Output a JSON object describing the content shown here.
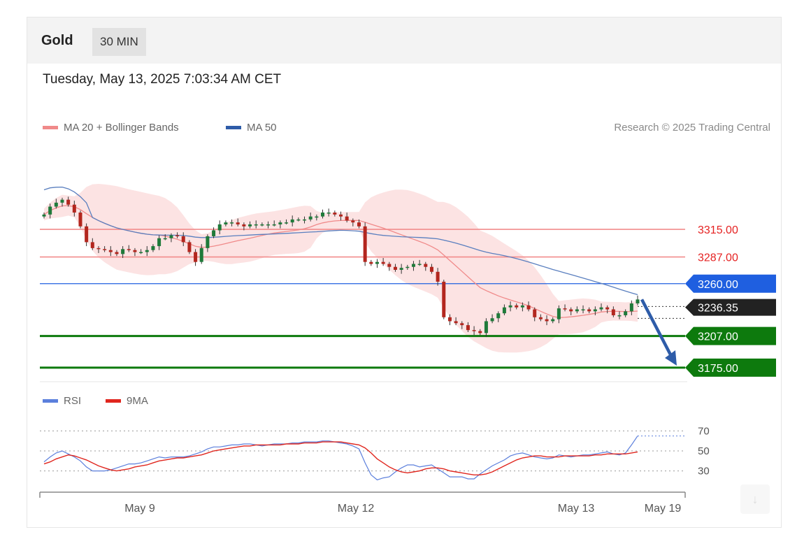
{
  "header": {
    "instrument": "Gold",
    "timeframe": "30 MIN"
  },
  "datetime": "Tuesday, May 13, 2025 7:03:34 AM CET",
  "legend": {
    "ma20": {
      "label": "MA 20 + Bollinger Bands",
      "color": "#f08a8a"
    },
    "ma50": {
      "label": "MA 50",
      "color": "#2e5ca8"
    }
  },
  "credit": "Research © 2025 Trading Central",
  "rsi_legend": {
    "rsi": {
      "label": "RSI",
      "color": "#5b7fdc"
    },
    "ma9": {
      "label": "9MA",
      "color": "#e0261e"
    }
  },
  "download_icon": "download-arrow-icon",
  "chart_data": {
    "type": "candlestick",
    "y_range": [
      3165,
      3395
    ],
    "x_ticks": [
      "May 9",
      "May 12",
      "May 13",
      "May 19"
    ],
    "levels": [
      {
        "value": 3315,
        "label": "3315.00",
        "kind": "resistance",
        "color": "#f28c8c"
      },
      {
        "value": 3287,
        "label": "3287.00",
        "kind": "resistance",
        "color": "#f28c8c"
      },
      {
        "value": 3260,
        "label": "3260.00",
        "kind": "pivot",
        "color": "#1f5fe0"
      },
      {
        "value": 3207,
        "label": "3207.00",
        "kind": "support",
        "color": "#0d7a0d"
      },
      {
        "value": 3175,
        "label": "3175.00",
        "kind": "support",
        "color": "#0d7a0d"
      }
    ],
    "current_price_label": "3236.35",
    "projection": {
      "from": 3244,
      "to": 3177
    },
    "close_series": [
      3330,
      3338,
      3342,
      3345,
      3340,
      3332,
      3318,
      3302,
      3296,
      3295,
      3294,
      3292,
      3290,
      3295,
      3294,
      3292,
      3292,
      3294,
      3298,
      3306,
      3306,
      3309,
      3308,
      3302,
      3292,
      3282,
      3296,
      3308,
      3314,
      3320,
      3322,
      3322,
      3320,
      3318,
      3320,
      3320,
      3320,
      3320,
      3320,
      3322,
      3322,
      3325,
      3325,
      3325,
      3328,
      3328,
      3332,
      3332,
      3330,
      3328,
      3324,
      3322,
      3318,
      3282,
      3280,
      3282,
      3280,
      3277,
      3274,
      3276,
      3277,
      3280,
      3280,
      3277,
      3272,
      3262,
      3226,
      3222,
      3220,
      3218,
      3213,
      3212,
      3210,
      3222,
      3225,
      3230,
      3236,
      3238,
      3236,
      3238,
      3234,
      3226,
      3224,
      3222,
      3224,
      3235,
      3234,
      3232,
      3234,
      3234,
      3232,
      3234,
      3236,
      3234,
      3228,
      3228,
      3232,
      3240,
      3244
    ],
    "rsi": {
      "levels": [
        70,
        50,
        30
      ],
      "range": [
        15,
        85
      ],
      "values": [
        39,
        44,
        48,
        50,
        47,
        44,
        40,
        34,
        30,
        30,
        30,
        31,
        33,
        35,
        37,
        37,
        38,
        40,
        42,
        44,
        43,
        44,
        44,
        44,
        45,
        47,
        49,
        52,
        54,
        54,
        55,
        56,
        56,
        57,
        57,
        56,
        55,
        56,
        57,
        57,
        57,
        58,
        58,
        59,
        59,
        59,
        60,
        60,
        59,
        58,
        57,
        55,
        52,
        38,
        26,
        21,
        23,
        24,
        29,
        33,
        36,
        36,
        34,
        35,
        36,
        32,
        28,
        24,
        24,
        24,
        22,
        22,
        27,
        31,
        35,
        38,
        41,
        45,
        47,
        48,
        46,
        44,
        43,
        42,
        43,
        46,
        45,
        44,
        45,
        46,
        46,
        47,
        48,
        49,
        47,
        46,
        48,
        56,
        65
      ],
      "ma9_values": [
        37,
        39,
        42,
        44,
        46,
        45,
        43,
        41,
        38,
        35,
        33,
        31,
        30,
        31,
        32,
        34,
        35,
        36,
        38,
        40,
        41,
        42,
        43,
        43,
        44,
        45,
        46,
        48,
        50,
        51,
        52,
        53,
        54,
        55,
        55,
        56,
        56,
        56,
        56,
        56,
        57,
        57,
        57,
        58,
        58,
        58,
        59,
        59,
        59,
        59,
        58,
        57,
        56,
        53,
        48,
        42,
        38,
        34,
        31,
        29,
        28,
        29,
        30,
        32,
        33,
        33,
        32,
        30,
        29,
        28,
        27,
        26,
        26,
        27,
        29,
        32,
        35,
        38,
        41,
        43,
        44,
        45,
        45,
        44,
        44,
        44,
        45,
        45,
        45,
        45,
        45,
        46,
        46,
        47,
        47,
        47,
        47,
        48,
        49
      ]
    }
  }
}
